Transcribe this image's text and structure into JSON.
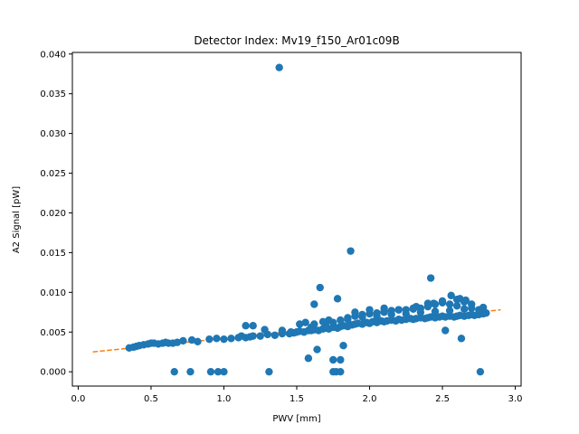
{
  "chart_data": {
    "type": "scatter",
    "title": "Detector Index: Mv19_f150_Ar01c09B",
    "xlabel": "PWV [mm]",
    "ylabel": "A2 Signal [pW]",
    "xlim": [
      -0.04,
      3.04
    ],
    "ylim": [
      -0.0018,
      0.0402
    ],
    "xticks": [
      "0.0",
      "0.5",
      "1.0",
      "1.5",
      "2.0",
      "2.5",
      "3.0"
    ],
    "yticks": [
      "0.000",
      "0.005",
      "0.010",
      "0.015",
      "0.020",
      "0.025",
      "0.030",
      "0.035",
      "0.040"
    ],
    "grid": false,
    "colors": {
      "points": "#1f77b4",
      "fit": "#ff7f0e"
    },
    "fit_line": {
      "x": [
        0.1,
        2.9
      ],
      "y": [
        0.0025,
        0.0078
      ]
    },
    "outliers": {
      "x": [
        1.38,
        1.87,
        2.42,
        1.66,
        1.78,
        1.62,
        1.75,
        1.8,
        2.52,
        2.63,
        0.66,
        0.77,
        0.91,
        0.96,
        1.0,
        1.31,
        1.75,
        1.77,
        1.8,
        2.76,
        1.82,
        1.64,
        1.58
      ],
      "y": [
        0.0383,
        0.0152,
        0.0118,
        0.0106,
        0.0092,
        0.0085,
        0.0015,
        0.0015,
        0.0052,
        0.0042,
        0.0,
        0.0,
        0.0,
        0.0,
        0.0,
        0.0,
        0.0,
        0.0,
        0.0,
        0.0,
        0.0033,
        0.0028,
        0.0017
      ]
    },
    "cloud": {
      "x": [
        0.35,
        0.38,
        0.4,
        0.42,
        0.45,
        0.48,
        0.5,
        0.52,
        0.55,
        0.58,
        0.6,
        0.62,
        0.65,
        0.68,
        0.72,
        0.78,
        0.82,
        0.9,
        0.95,
        1.0,
        1.05,
        1.1,
        1.12,
        1.15,
        1.18,
        1.2,
        1.25,
        1.3,
        1.35,
        1.4,
        1.45,
        1.48,
        1.5,
        1.52,
        1.55,
        1.58,
        1.6,
        1.62,
        1.65,
        1.68,
        1.7,
        1.72,
        1.75,
        1.78,
        1.8,
        1.82,
        1.85,
        1.88,
        1.9,
        1.92,
        1.95,
        1.98,
        2.0,
        2.02,
        2.05,
        2.08,
        2.1,
        2.12,
        2.15,
        2.18,
        2.2,
        2.22,
        2.25,
        2.28,
        2.3,
        2.32,
        2.35,
        2.38,
        2.4,
        2.42,
        2.45,
        2.48,
        2.5,
        2.52,
        2.55,
        2.58,
        2.6,
        2.62,
        2.65,
        2.68,
        2.7,
        2.72,
        2.75,
        2.78,
        2.8,
        1.4,
        1.6,
        1.7,
        1.75,
        1.85,
        1.9,
        1.95,
        2.0,
        2.05,
        2.1,
        2.15,
        2.2,
        2.25,
        2.3,
        2.35,
        2.4,
        2.45,
        2.5,
        2.55,
        2.6,
        2.65,
        2.7,
        2.75,
        1.8,
        1.9,
        2.0,
        2.1,
        2.2,
        2.3,
        2.4,
        2.5,
        2.6,
        2.7,
        1.62,
        1.68,
        1.72,
        1.85,
        1.95,
        2.05,
        2.15,
        2.25,
        2.35,
        2.45,
        2.55,
        2.65,
        1.15,
        1.2,
        1.28,
        1.46,
        1.52,
        1.56,
        2.1,
        2.32,
        2.44,
        2.56,
        2.62,
        2.66,
        2.78
      ],
      "y": [
        0.003,
        0.0031,
        0.0032,
        0.0033,
        0.0034,
        0.0035,
        0.0036,
        0.0036,
        0.0035,
        0.0036,
        0.0037,
        0.0036,
        0.0036,
        0.0037,
        0.0039,
        0.004,
        0.0038,
        0.0041,
        0.0042,
        0.0041,
        0.0042,
        0.0043,
        0.0045,
        0.0043,
        0.0044,
        0.0045,
        0.0045,
        0.0047,
        0.0046,
        0.0048,
        0.0048,
        0.0049,
        0.005,
        0.0051,
        0.005,
        0.0052,
        0.0052,
        0.0053,
        0.0052,
        0.0054,
        0.0055,
        0.0054,
        0.0056,
        0.0055,
        0.0057,
        0.0058,
        0.0057,
        0.0059,
        0.006,
        0.0061,
        0.006,
        0.0062,
        0.0061,
        0.0063,
        0.0062,
        0.0064,
        0.0063,
        0.0064,
        0.0065,
        0.0064,
        0.0066,
        0.0065,
        0.0066,
        0.0067,
        0.0066,
        0.0067,
        0.0068,
        0.0067,
        0.0068,
        0.0069,
        0.0068,
        0.0069,
        0.007,
        0.0069,
        0.007,
        0.0069,
        0.007,
        0.0071,
        0.007,
        0.0071,
        0.0072,
        0.0071,
        0.0072,
        0.0073,
        0.0074,
        0.0052,
        0.0056,
        0.0058,
        0.0062,
        0.0068,
        0.007,
        0.0072,
        0.0073,
        0.0074,
        0.0075,
        0.0077,
        0.0078,
        0.0078,
        0.0079,
        0.008,
        0.0082,
        0.0085,
        0.0087,
        0.0085,
        0.0083,
        0.0088,
        0.0085,
        0.0078,
        0.0065,
        0.0075,
        0.0078,
        0.008,
        0.0078,
        0.008,
        0.0086,
        0.0089,
        0.0091,
        0.008,
        0.006,
        0.0063,
        0.0065,
        0.0066,
        0.0069,
        0.007,
        0.0072,
        0.0073,
        0.0075,
        0.0076,
        0.0077,
        0.0079,
        0.0058,
        0.0058,
        0.0053,
        0.005,
        0.006,
        0.0062,
        0.0076,
        0.0082,
        0.0086,
        0.0096,
        0.0092,
        0.009,
        0.0081
      ]
    }
  }
}
